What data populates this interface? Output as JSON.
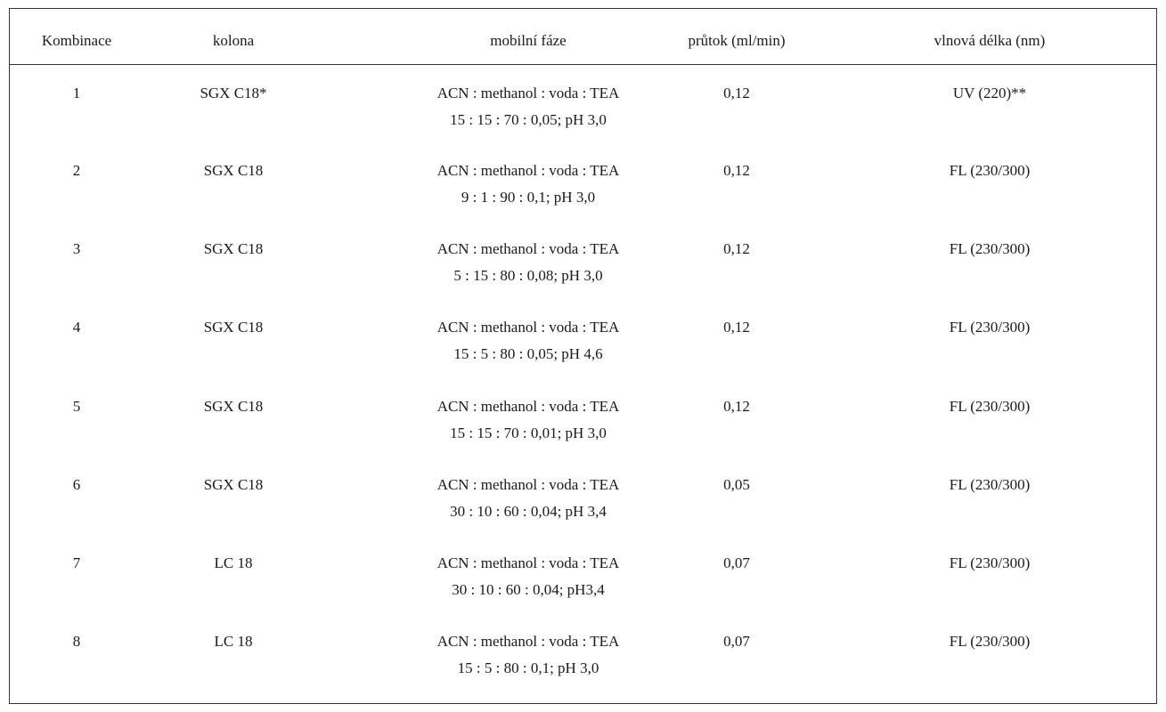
{
  "table": {
    "headers": {
      "kombinace": "Kombinace",
      "kolona": "kolona",
      "mobilni_faze": "mobilní fáze",
      "prutok": "průtok (ml/min)",
      "vlnova_delka": "vlnová délka (nm)"
    },
    "rows": [
      {
        "kombinace": "1",
        "kolona": "SGX C18*",
        "faze_line1": "ACN : methanol : voda : TEA",
        "faze_line2": "15 : 15 : 70 : 0,05; pH 3,0",
        "prutok": "0,12",
        "vlnova_delka": "UV (220)**"
      },
      {
        "kombinace": "2",
        "kolona": "SGX C18",
        "faze_line1": "ACN : methanol : voda : TEA",
        "faze_line2": "9 : 1 : 90 : 0,1; pH 3,0",
        "prutok": "0,12",
        "vlnova_delka": "FL (230/300)"
      },
      {
        "kombinace": "3",
        "kolona": "SGX C18",
        "faze_line1": "ACN : methanol : voda : TEA",
        "faze_line2": "5 : 15 : 80 : 0,08; pH 3,0",
        "prutok": "0,12",
        "vlnova_delka": "FL (230/300)"
      },
      {
        "kombinace": "4",
        "kolona": "SGX C18",
        "faze_line1": "ACN : methanol : voda : TEA",
        "faze_line2": "15 : 5 : 80 : 0,05; pH 4,6",
        "prutok": "0,12",
        "vlnova_delka": "FL (230/300)"
      },
      {
        "kombinace": "5",
        "kolona": "SGX C18",
        "faze_line1": "ACN : methanol : voda : TEA",
        "faze_line2": "15 : 15 : 70 : 0,01; pH 3,0",
        "prutok": "0,12",
        "vlnova_delka": "FL (230/300)"
      },
      {
        "kombinace": "6",
        "kolona": "SGX C18",
        "faze_line1": "ACN : methanol : voda : TEA",
        "faze_line2": "30 : 10 : 60 : 0,04; pH 3,4",
        "prutok": "0,05",
        "vlnova_delka": "FL (230/300)"
      },
      {
        "kombinace": "7",
        "kolona": "LC 18",
        "faze_line1": "ACN : methanol : voda : TEA",
        "faze_line2": "30 : 10 : 60 : 0,04; pH3,4",
        "prutok": "0,07",
        "vlnova_delka": "FL (230/300)"
      },
      {
        "kombinace": "8",
        "kolona": "LC 18",
        "faze_line1": "ACN : methanol : voda : TEA",
        "faze_line2": "15 : 5 : 80 : 0,1; pH 3,0",
        "prutok": "0,07",
        "vlnova_delka": "FL (230/300)"
      }
    ]
  }
}
